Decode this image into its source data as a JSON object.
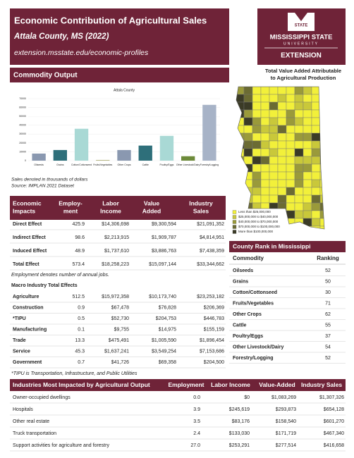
{
  "header": {
    "title": "Economic Contribution of Agricultural Sales",
    "subtitle": "Attala County, MS (2022)",
    "url": "extension.msstate.edu/economic-profiles"
  },
  "logo": {
    "badge": "STATE",
    "name": "MISSISSIPPI STATE",
    "university": "UNIVERSITY",
    "extension": "EXTENSION"
  },
  "map": {
    "title_lines": [
      "Total Value Added Attributable",
      "to Agricultural Production"
    ],
    "legend": [
      {
        "label": "Less than $25,000,000",
        "color": "#f2f03a"
      },
      {
        "label": "$25,000,000 to $40,000,000",
        "color": "#c9c83a"
      },
      {
        "label": "$40,000,000 to $70,000,000",
        "color": "#9a9a3a"
      },
      {
        "label": "$70,000,000 to $100,000,000",
        "color": "#6b6b33"
      },
      {
        "label": "More than $100,000,000",
        "color": "#3b3b26"
      }
    ]
  },
  "commodity_output": {
    "heading": "Commodity Output",
    "chart": {
      "type": "bar",
      "title": "Attala County",
      "categories": [
        "Oilseeds",
        "Grains",
        "Cotton/Cottonseed",
        "Fruits/Vegetables",
        "Other Crops",
        "Cattle",
        "Poultry/Eggs",
        "Other Livestock/Dairy",
        "Forestry/Logging"
      ],
      "values": [
        8000,
        12000,
        36000,
        500,
        12000,
        17000,
        28000,
        5000,
        63000
      ],
      "colors": [
        "#8a98b0",
        "#2e6f7a",
        "#a9d9d5",
        "#8a8a3a",
        "#8a98b0",
        "#2e6f7a",
        "#a9d9d5",
        "#6d8a3a",
        "#a7b3c7"
      ],
      "ylim": [
        0,
        70000
      ],
      "yticks": [
        0,
        10000,
        20000,
        30000,
        40000,
        50000,
        60000,
        70000
      ],
      "grid": true
    },
    "notes": [
      "Sales denoted in thousands of dollars",
      "Source: IMPLAN 2021 Dataset"
    ]
  },
  "impacts": {
    "headers": [
      [
        "Economic",
        "Impacts"
      ],
      [
        "Employ-",
        "ment"
      ],
      [
        "Labor",
        "Income"
      ],
      [
        "Value",
        "Added"
      ],
      [
        "Industry",
        "Sales"
      ]
    ],
    "rows": [
      [
        "Direct Effect",
        "425.9",
        "$14,306,698",
        "$9,300,594",
        "$21,091,352"
      ],
      [
        "Indirect Effect",
        "98.6",
        "$2,213,915",
        "$1,909,787",
        "$4,814,951"
      ],
      [
        "Induced Effect",
        "48.9",
        "$1,737,610",
        "$3,886,763",
        "$7,438,359"
      ],
      [
        "Total Effect",
        "573.4",
        "$18,258,223",
        "$15,097,144",
        "$33,344,662"
      ]
    ],
    "note": "Employment denotes number of annual jobs.",
    "macro_heading": "Macro Industry Total Effects",
    "macro_rows": [
      [
        "Agriculture",
        "512.5",
        "$15,972,358",
        "$10,173,740",
        "$23,253,182"
      ],
      [
        "Construction",
        "0.9",
        "$67,478",
        "$76,828",
        "$206,369"
      ],
      [
        "*TIPU",
        "0.5",
        "$52,730",
        "$204,753",
        "$446,783"
      ],
      [
        "Manufacturing",
        "0.1",
        "$9,755",
        "$14,975",
        "$155,159"
      ],
      [
        "Trade",
        "13.3",
        "$475,491",
        "$1,005,590",
        "$1,896,454"
      ],
      [
        "Service",
        "45.3",
        "$1,637,241",
        "$3,549,254",
        "$7,153,686"
      ],
      [
        "Government",
        "0.7",
        "$41,726",
        "$69,358",
        "$204,500"
      ]
    ],
    "macro_note": "*TIPU is Transportation, Infrastructure, and Public Utilities"
  },
  "county_rank": {
    "heading": "County Rank in Mississippi",
    "headers": [
      "Commodity",
      "Ranking"
    ],
    "rows": [
      [
        "Oilseeds",
        "52"
      ],
      [
        "Grains",
        "50"
      ],
      [
        "Cotton/Cottonseed",
        "30"
      ],
      [
        "Fruits/Vegetables",
        "71"
      ],
      [
        "Other Crops",
        "62"
      ],
      [
        "Cattle",
        "55"
      ],
      [
        "Poultry/Eggs",
        "37"
      ],
      [
        "Other Livestock/Dairy",
        "54"
      ],
      [
        "Forestry/Logging",
        "52"
      ]
    ]
  },
  "industries": {
    "headers": [
      "Industries Most Impacted by Agricultural Output",
      "Employment",
      "Labor Income",
      "Value-Added",
      "Industry Sales"
    ],
    "rows": [
      [
        "Owner-occupied dwellings",
        "0.0",
        "$0",
        "$1,083,269",
        "$1,307,326"
      ],
      [
        "Hospitals",
        "3.9",
        "$245,619",
        "$293,873",
        "$654,128"
      ],
      [
        "Other real estate",
        "3.5",
        "$83,176",
        "$158,540",
        "$601,270"
      ],
      [
        "Truck transportation",
        "2.4",
        "$133,030",
        "$171,719",
        "$467,340"
      ],
      [
        "Support activities for agriculture and forestry",
        "27.0",
        "$253,291",
        "$277,514",
        "$416,658"
      ]
    ]
  }
}
